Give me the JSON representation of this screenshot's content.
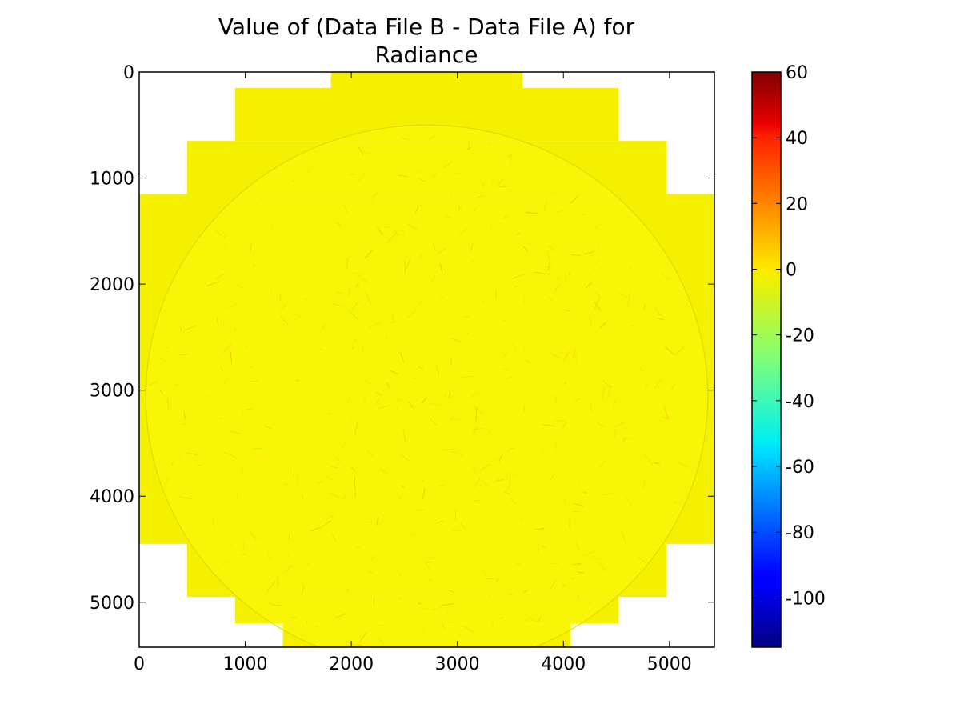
{
  "chart_data": {
    "type": "heatmap",
    "title_lines": [
      "Value of (Data File B - Data File A) for",
      "Radiance"
    ],
    "xlabel": "",
    "ylabel": "",
    "xlim": [
      0,
      5424
    ],
    "ylim": [
      5424,
      0
    ],
    "x_ticks": [
      0,
      1000,
      2000,
      3000,
      4000,
      5000
    ],
    "y_ticks": [
      0,
      1000,
      2000,
      3000,
      4000,
      5000
    ],
    "x_tick_labels": [
      "0",
      "1000",
      "2000",
      "3000",
      "4000",
      "5000"
    ],
    "y_tick_labels": [
      "0",
      "1000",
      "2000",
      "3000",
      "4000",
      "5000"
    ],
    "colorbar": {
      "colormap": "jet",
      "range": [
        -115,
        60
      ],
      "ticks": [
        60,
        40,
        20,
        0,
        -20,
        -40,
        -60,
        -80,
        -100
      ],
      "tick_labels": [
        "60",
        "40",
        "20",
        "0",
        "-20",
        "-40",
        "-60",
        "-80",
        "-100"
      ]
    },
    "background_value": 0,
    "background_color": "#f4f000",
    "disk_edge_color": "#ffff10",
    "grid": false,
    "data_footprint_rows": [
      {
        "y_range": [
          0,
          150
        ],
        "x_range": [
          1808,
          3616
        ]
      },
      {
        "y_range": [
          150,
          650
        ],
        "x_range": [
          904,
          4520
        ]
      },
      {
        "y_range": [
          650,
          1150
        ],
        "x_range": [
          452,
          4972
        ]
      },
      {
        "y_range": [
          1150,
          4450
        ],
        "x_range": [
          0,
          5424
        ]
      },
      {
        "y_range": [
          4450,
          4950
        ],
        "x_range": [
          452,
          4972
        ]
      },
      {
        "y_range": [
          4950,
          5200
        ],
        "x_range": [
          904,
          4520
        ]
      },
      {
        "y_range": [
          5200,
          5424
        ],
        "x_range": [
          1356,
          4068
        ]
      }
    ],
    "earth_disk": {
      "center": [
        2712,
        3060
      ],
      "radii": [
        2650,
        2560
      ]
    }
  }
}
